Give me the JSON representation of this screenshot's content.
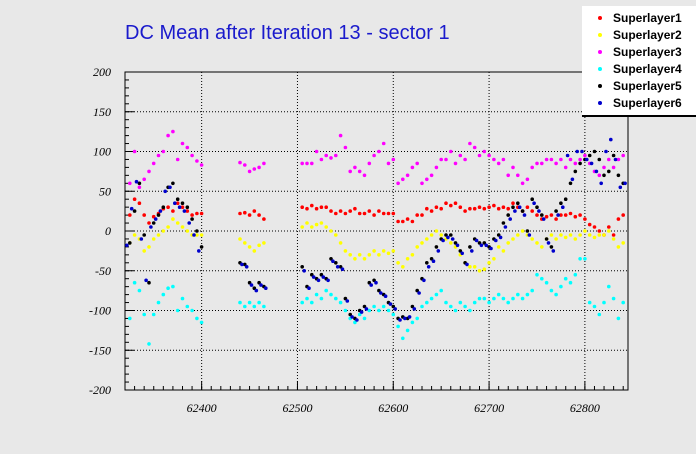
{
  "chart_data": {
    "type": "scatter",
    "title": "DC Mean after Iteration 13 - sector 1",
    "xlabel": "",
    "ylabel": "",
    "xlim": [
      62320,
      62845
    ],
    "ylim": [
      -200,
      200
    ],
    "xticks": [
      62400,
      62500,
      62600,
      62700,
      62800
    ],
    "yticks": [
      -200,
      -150,
      -100,
      -50,
      0,
      50,
      100,
      150,
      200
    ],
    "grid": true,
    "legend_position": "top-right",
    "series": [
      {
        "name": "Superlayer1",
        "color": "#ff0000",
        "x": [
          62325,
          62330,
          62335,
          62340,
          62345,
          62350,
          62355,
          62360,
          62365,
          62370,
          62375,
          62380,
          62385,
          62390,
          62395,
          62400,
          62440,
          62445,
          62450,
          62455,
          62460,
          62465,
          62505,
          62510,
          62515,
          62520,
          62525,
          62530,
          62535,
          62540,
          62545,
          62550,
          62555,
          62560,
          62565,
          62570,
          62575,
          62580,
          62585,
          62590,
          62595,
          62600,
          62605,
          62610,
          62615,
          62620,
          62625,
          62630,
          62635,
          62640,
          62645,
          62650,
          62655,
          62660,
          62665,
          62670,
          62675,
          62680,
          62685,
          62690,
          62695,
          62700,
          62705,
          62710,
          62715,
          62720,
          62725,
          62730,
          62735,
          62740,
          62745,
          62750,
          62755,
          62760,
          62765,
          62770,
          62775,
          62780,
          62785,
          62790,
          62795,
          62800,
          62805,
          62810,
          62815,
          62820,
          62825,
          62830,
          62835,
          62840
        ],
        "y": [
          20,
          40,
          35,
          20,
          10,
          18,
          22,
          28,
          30,
          25,
          35,
          30,
          25,
          20,
          22,
          22,
          22,
          23,
          20,
          25,
          20,
          15,
          30,
          28,
          32,
          28,
          30,
          30,
          25,
          22,
          25,
          22,
          25,
          28,
          22,
          22,
          25,
          20,
          25,
          22,
          22,
          22,
          12,
          12,
          15,
          12,
          20,
          20,
          28,
          25,
          30,
          28,
          35,
          32,
          35,
          30,
          25,
          28,
          28,
          30,
          28,
          30,
          32,
          28,
          30,
          28,
          35,
          30,
          25,
          30,
          25,
          20,
          15,
          18,
          20,
          15,
          20,
          20,
          22,
          18,
          20,
          15,
          8,
          5,
          0,
          -5,
          5,
          -5,
          15,
          20
        ]
      },
      {
        "name": "Superlayer2",
        "color": "#ffff00",
        "x": [
          62325,
          62330,
          62335,
          62340,
          62345,
          62350,
          62355,
          62360,
          62365,
          62370,
          62375,
          62380,
          62385,
          62390,
          62395,
          62400,
          62440,
          62445,
          62450,
          62455,
          62460,
          62465,
          62505,
          62510,
          62515,
          62520,
          62525,
          62530,
          62535,
          62540,
          62545,
          62550,
          62555,
          62560,
          62565,
          62570,
          62575,
          62580,
          62585,
          62590,
          62595,
          62600,
          62605,
          62610,
          62615,
          62620,
          62625,
          62630,
          62635,
          62640,
          62645,
          62650,
          62655,
          62660,
          62665,
          62670,
          62675,
          62680,
          62685,
          62690,
          62695,
          62700,
          62705,
          62710,
          62715,
          62720,
          62725,
          62730,
          62735,
          62740,
          62745,
          62750,
          62755,
          62760,
          62765,
          62770,
          62775,
          62780,
          62785,
          62790,
          62795,
          62800,
          62805,
          62810,
          62815,
          62820,
          62825,
          62830,
          62835,
          62840
        ],
        "y": [
          -15,
          -5,
          -10,
          -25,
          -20,
          -10,
          -5,
          0,
          5,
          15,
          10,
          5,
          0,
          -5,
          -5,
          -5,
          -10,
          -15,
          -20,
          -25,
          -18,
          -15,
          5,
          10,
          5,
          8,
          10,
          5,
          0,
          -5,
          -15,
          -25,
          -30,
          -35,
          -30,
          -35,
          -30,
          -25,
          -30,
          -25,
          -28,
          -25,
          -40,
          -45,
          -35,
          -30,
          -20,
          -15,
          -10,
          -5,
          0,
          -5,
          -10,
          -15,
          -20,
          -30,
          -40,
          -45,
          -45,
          -50,
          -48,
          -40,
          -35,
          -20,
          -25,
          -15,
          -10,
          -5,
          0,
          -5,
          -10,
          -15,
          -20,
          -10,
          -5,
          -10,
          -5,
          -8,
          -5,
          -10,
          -5,
          0,
          -5,
          -8,
          -5,
          -5,
          0,
          -10,
          -20,
          -15
        ]
      },
      {
        "name": "Superlayer3",
        "color": "#ff00ff",
        "x": [
          62325,
          62330,
          62335,
          62340,
          62345,
          62350,
          62355,
          62360,
          62365,
          62370,
          62375,
          62380,
          62385,
          62390,
          62395,
          62400,
          62440,
          62445,
          62450,
          62455,
          62460,
          62465,
          62505,
          62510,
          62515,
          62520,
          62525,
          62530,
          62535,
          62540,
          62545,
          62550,
          62555,
          62560,
          62565,
          62570,
          62575,
          62580,
          62585,
          62590,
          62595,
          62600,
          62605,
          62610,
          62615,
          62620,
          62625,
          62630,
          62635,
          62640,
          62645,
          62650,
          62655,
          62660,
          62665,
          62670,
          62675,
          62680,
          62685,
          62690,
          62695,
          62700,
          62705,
          62710,
          62715,
          62720,
          62725,
          62730,
          62735,
          62740,
          62745,
          62750,
          62755,
          62760,
          62765,
          62770,
          62775,
          62780,
          62785,
          62790,
          62795,
          62800,
          62805,
          62810,
          62815,
          62820,
          62825,
          62830,
          62835,
          62840
        ],
        "y": [
          60,
          100,
          55,
          65,
          75,
          85,
          95,
          100,
          120,
          125,
          90,
          110,
          105,
          95,
          88,
          83,
          86,
          83,
          75,
          78,
          80,
          85,
          85,
          85,
          85,
          100,
          90,
          95,
          92,
          95,
          120,
          105,
          75,
          80,
          75,
          70,
          85,
          95,
          100,
          110,
          85,
          90,
          60,
          65,
          70,
          80,
          85,
          60,
          65,
          70,
          80,
          90,
          90,
          100,
          85,
          95,
          90,
          110,
          105,
          95,
          100,
          95,
          90,
          85,
          90,
          70,
          80,
          70,
          60,
          65,
          80,
          85,
          85,
          90,
          90,
          85,
          90,
          80,
          90,
          85,
          90,
          95,
          85,
          75,
          70,
          80,
          90,
          80,
          90,
          95
        ]
      },
      {
        "name": "Superlayer4",
        "color": "#00ffff",
        "x": [
          62325,
          62330,
          62335,
          62340,
          62345,
          62350,
          62355,
          62360,
          62365,
          62370,
          62375,
          62380,
          62385,
          62390,
          62395,
          62400,
          62440,
          62445,
          62450,
          62455,
          62460,
          62465,
          62505,
          62510,
          62515,
          62520,
          62525,
          62530,
          62535,
          62540,
          62545,
          62550,
          62555,
          62560,
          62565,
          62570,
          62575,
          62580,
          62585,
          62590,
          62595,
          62600,
          62605,
          62610,
          62615,
          62620,
          62625,
          62630,
          62635,
          62640,
          62645,
          62650,
          62655,
          62660,
          62665,
          62670,
          62675,
          62680,
          62685,
          62690,
          62695,
          62700,
          62705,
          62710,
          62715,
          62720,
          62725,
          62730,
          62735,
          62740,
          62745,
          62750,
          62755,
          62760,
          62765,
          62770,
          62775,
          62780,
          62785,
          62790,
          62795,
          62800,
          62805,
          62810,
          62815,
          62820,
          62825,
          62830,
          62835,
          62840
        ],
        "y": [
          -110,
          -65,
          -75,
          -105,
          -142,
          -105,
          -90,
          -80,
          -72,
          -70,
          -100,
          -85,
          -95,
          -100,
          -110,
          -115,
          -90,
          -95,
          -90,
          -95,
          -90,
          -95,
          -90,
          -85,
          -90,
          -80,
          -85,
          -75,
          -80,
          -85,
          -90,
          -100,
          -110,
          -115,
          -105,
          -110,
          -100,
          -95,
          -100,
          -95,
          -100,
          -105,
          -120,
          -135,
          -125,
          -115,
          -110,
          -95,
          -90,
          -85,
          -80,
          -75,
          -90,
          -95,
          -100,
          -90,
          -95,
          -100,
          -90,
          -85,
          -85,
          -90,
          -85,
          -80,
          -85,
          -90,
          -85,
          -80,
          -85,
          -80,
          -75,
          -55,
          -60,
          -65,
          -75,
          -80,
          -70,
          -60,
          -65,
          -55,
          -35,
          -35,
          -90,
          -95,
          -105,
          -90,
          -70,
          -85,
          -110,
          -90
        ]
      },
      {
        "name": "Superlayer5",
        "color": "#000000",
        "x": [
          62325,
          62330,
          62335,
          62340,
          62345,
          62350,
          62355,
          62360,
          62365,
          62370,
          62375,
          62380,
          62385,
          62390,
          62395,
          62400,
          62440,
          62445,
          62450,
          62455,
          62460,
          62465,
          62505,
          62510,
          62515,
          62520,
          62525,
          62530,
          62535,
          62540,
          62545,
          62550,
          62555,
          62560,
          62565,
          62570,
          62575,
          62580,
          62585,
          62590,
          62595,
          62600,
          62605,
          62610,
          62615,
          62620,
          62625,
          62630,
          62635,
          62640,
          62645,
          62650,
          62655,
          62660,
          62665,
          62670,
          62675,
          62680,
          62685,
          62690,
          62695,
          62700,
          62705,
          62710,
          62715,
          62720,
          62725,
          62730,
          62735,
          62740,
          62745,
          62750,
          62755,
          62760,
          62765,
          62770,
          62775,
          62780,
          62785,
          62790,
          62795,
          62800,
          62805,
          62810,
          62815,
          62820,
          62825,
          62830,
          62835,
          62840
        ],
        "y": [
          -15,
          25,
          60,
          -5,
          -65,
          10,
          20,
          30,
          55,
          60,
          40,
          35,
          30,
          15,
          0,
          -20,
          -40,
          -42,
          -65,
          -72,
          -65,
          -70,
          -45,
          -70,
          -55,
          -60,
          -55,
          -60,
          -35,
          -40,
          -45,
          -85,
          -105,
          -110,
          -100,
          -95,
          -65,
          -62,
          -75,
          -80,
          -90,
          -95,
          -110,
          -108,
          -110,
          -95,
          -75,
          -60,
          -40,
          -35,
          -20,
          -10,
          -5,
          -5,
          -15,
          -25,
          -40,
          -20,
          -10,
          -15,
          -15,
          -20,
          -10,
          -5,
          10,
          20,
          30,
          35,
          25,
          0,
          40,
          30,
          20,
          -10,
          -20,
          25,
          35,
          40,
          60,
          75,
          85,
          90,
          95,
          100,
          90,
          70,
          75,
          95,
          70,
          60
        ]
      },
      {
        "name": "Superlayer6",
        "color": "#0000cc",
        "x": [
          62322,
          62327,
          62332,
          62337,
          62342,
          62347,
          62352,
          62357,
          62362,
          62367,
          62372,
          62377,
          62382,
          62387,
          62392,
          62397,
          62442,
          62447,
          62452,
          62457,
          62462,
          62467,
          62507,
          62512,
          62517,
          62522,
          62527,
          62532,
          62537,
          62542,
          62547,
          62552,
          62557,
          62562,
          62567,
          62572,
          62577,
          62582,
          62587,
          62592,
          62597,
          62602,
          62607,
          62612,
          62617,
          62622,
          62627,
          62632,
          62637,
          62642,
          62647,
          62652,
          62657,
          62662,
          62667,
          62672,
          62677,
          62682,
          62687,
          62692,
          62697,
          62702,
          62707,
          62712,
          62717,
          62722,
          62727,
          62732,
          62737,
          62742,
          62747,
          62752,
          62757,
          62762,
          62767,
          62772,
          62777,
          62782,
          62787,
          62792,
          62797,
          62802,
          62807,
          62812,
          62817,
          62822,
          62827,
          62832,
          62837,
          62842
        ],
        "y": [
          -18,
          28,
          62,
          -10,
          -62,
          5,
          15,
          25,
          50,
          55,
          35,
          30,
          25,
          10,
          -5,
          -25,
          -42,
          -45,
          -68,
          -75,
          -68,
          -72,
          -50,
          -72,
          -58,
          -62,
          -58,
          -62,
          -38,
          -45,
          -48,
          -88,
          -108,
          -112,
          -102,
          -98,
          -68,
          -65,
          -78,
          -82,
          -92,
          -98,
          -112,
          -110,
          -108,
          -98,
          -78,
          -62,
          -45,
          -38,
          -25,
          -12,
          -8,
          -10,
          -18,
          -28,
          -42,
          -25,
          -12,
          -18,
          -18,
          -22,
          -12,
          -8,
          5,
          15,
          25,
          30,
          20,
          -5,
          35,
          25,
          15,
          -15,
          -25,
          20,
          30,
          95,
          65,
          100,
          100,
          90,
          85,
          75,
          60,
          100,
          115,
          90,
          55,
          60
        ]
      }
    ]
  }
}
